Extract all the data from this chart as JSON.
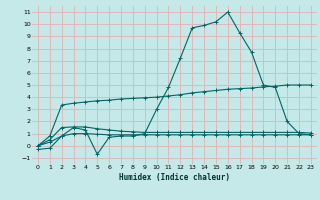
{
  "title": "",
  "xlabel": "Humidex (Indice chaleur)",
  "background_color": "#c5e8e8",
  "grid_color": "#deb8b8",
  "line_color": "#006666",
  "xlim": [
    -0.5,
    23.5
  ],
  "ylim": [
    -1.5,
    11.5
  ],
  "xticks": [
    0,
    1,
    2,
    3,
    4,
    5,
    6,
    7,
    8,
    9,
    10,
    11,
    12,
    13,
    14,
    15,
    16,
    17,
    18,
    19,
    20,
    21,
    22,
    23
  ],
  "yticks": [
    -1,
    0,
    1,
    2,
    3,
    4,
    5,
    6,
    7,
    8,
    9,
    10,
    11
  ],
  "series1_y": [
    -0.3,
    -0.2,
    0.8,
    1.5,
    1.3,
    -0.7,
    0.7,
    0.8,
    0.8,
    1.0,
    3.0,
    4.8,
    7.2,
    9.7,
    9.9,
    10.2,
    11.0,
    9.3,
    7.7,
    5.0,
    4.8,
    2.0,
    1.0,
    0.9
  ],
  "series2_y": [
    0.0,
    0.8,
    3.35,
    3.5,
    3.6,
    3.7,
    3.75,
    3.85,
    3.9,
    3.95,
    4.0,
    4.1,
    4.2,
    4.35,
    4.45,
    4.55,
    4.65,
    4.7,
    4.75,
    4.85,
    4.9,
    5.0,
    5.0,
    5.0
  ],
  "series3_y": [
    0.0,
    0.5,
    1.5,
    1.55,
    1.55,
    1.4,
    1.3,
    1.2,
    1.15,
    1.1,
    1.1,
    1.1,
    1.1,
    1.1,
    1.1,
    1.1,
    1.1,
    1.1,
    1.1,
    1.1,
    1.1,
    1.1,
    1.1,
    1.05
  ],
  "series4_y": [
    0.0,
    0.3,
    0.8,
    1.0,
    1.0,
    0.95,
    0.9,
    0.9,
    0.9,
    0.9,
    0.9,
    0.9,
    0.9,
    0.9,
    0.9,
    0.9,
    0.9,
    0.9,
    0.9,
    0.9,
    0.9,
    0.9,
    0.9,
    0.9
  ]
}
